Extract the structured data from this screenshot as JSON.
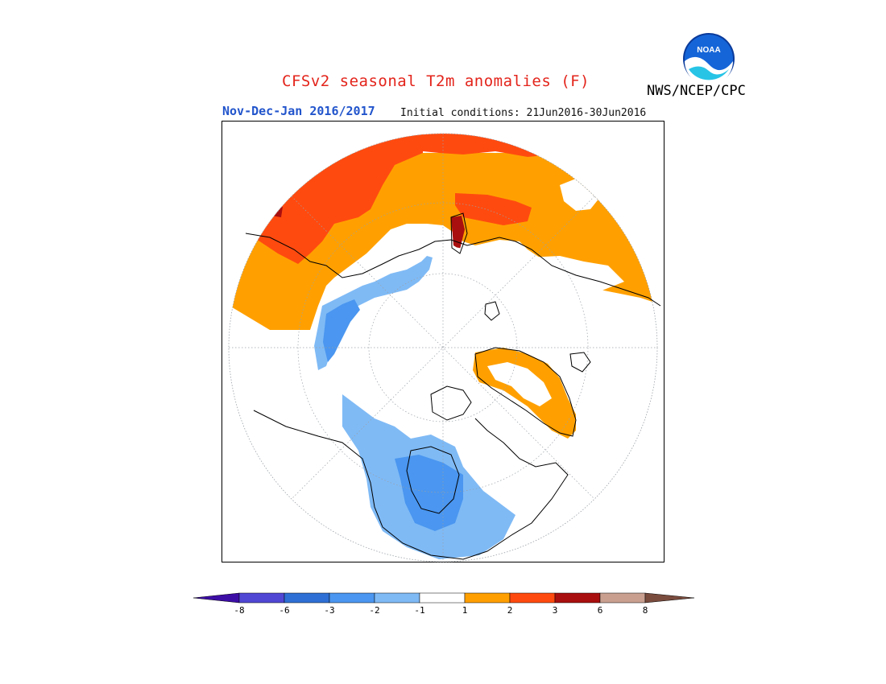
{
  "title": "CFSv2 seasonal T2m anomalies (F)",
  "season": "Nov-Dec-Jan 2016/2017",
  "initial_conditions": "Initial conditions: 21Jun2016-30Jun2016",
  "agency": "NWS/NCEP/CPC",
  "logo_text": "NOAA",
  "colorbar": {
    "colors": [
      "#3d0ea6",
      "#5047d4",
      "#2d6fd4",
      "#4a96f0",
      "#7fbaf5",
      "#ffffff",
      "#ffa000",
      "#ff4a0f",
      "#a90f0f",
      "#c9a090",
      "#7a4c3e"
    ],
    "labels": [
      "-8",
      "-6",
      "-3",
      "-2",
      "-1",
      "1",
      "2",
      "3",
      "6",
      "8"
    ]
  },
  "map": {
    "projection": "polar-stereographic",
    "hemisphere": "north",
    "legend_levels_shown": [
      "-3",
      "-2",
      "-1",
      "1",
      "2",
      "3",
      "6"
    ]
  }
}
